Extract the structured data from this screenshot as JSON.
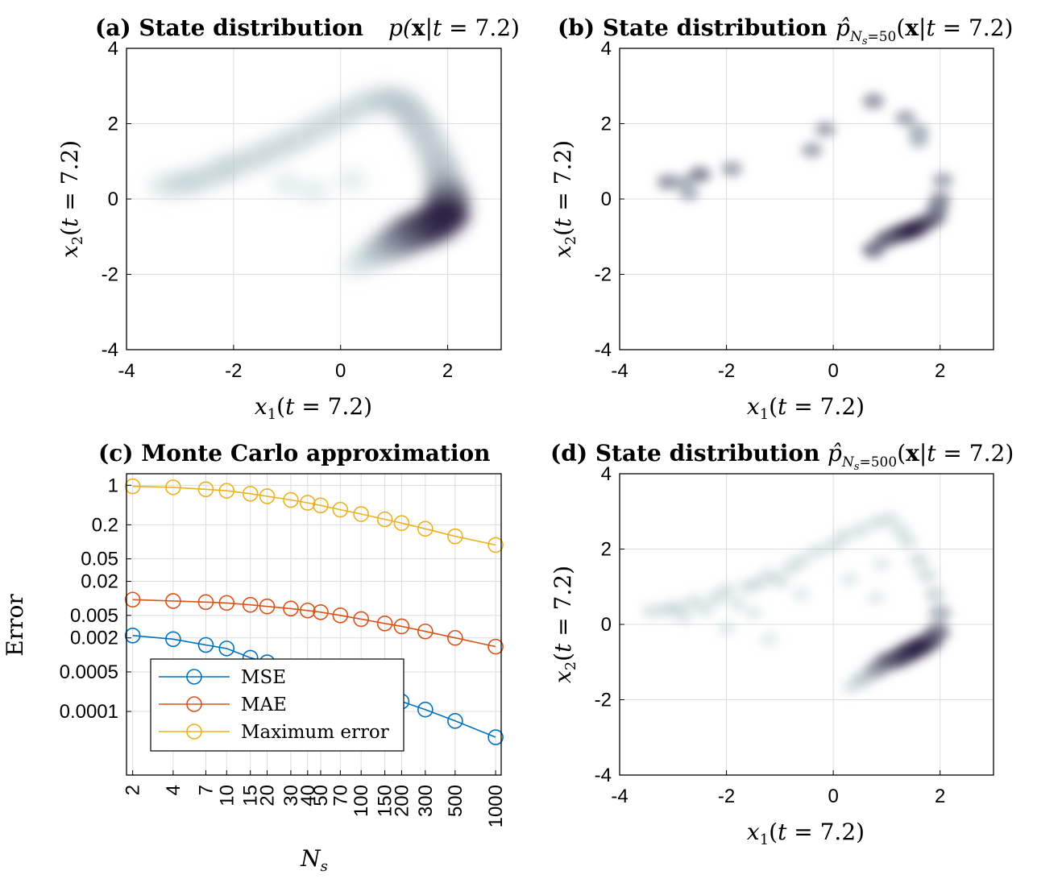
{
  "colors": {
    "density_light": "#c4dadb",
    "density_dark": "#2e2446",
    "mse": "#0072BD",
    "mae": "#D95319",
    "max_error": "#EDB120",
    "grid": "#dcdcdc"
  },
  "chart_data": [
    {
      "panel": "a",
      "type": "heatmap",
      "title_prefix": "(a) State distribution",
      "title_math": "p(x|t = 7.2)",
      "xlabel": "x1(t = 7.2)",
      "ylabel": "x2(t = 7.2)",
      "xlim": [
        -4,
        3
      ],
      "ylim": [
        -4,
        4
      ],
      "xticks": [
        -4,
        -2,
        0,
        2
      ],
      "yticks": [
        -4,
        -2,
        0,
        2,
        4
      ],
      "grid": true,
      "points": [
        [
          -3.3,
          0.35,
          0.2
        ],
        [
          -3.0,
          0.4,
          0.3
        ],
        [
          -2.7,
          0.5,
          0.35
        ],
        [
          -2.3,
          0.7,
          0.35
        ],
        [
          -2.0,
          0.9,
          0.35
        ],
        [
          -1.6,
          1.1,
          0.35
        ],
        [
          -1.2,
          1.35,
          0.35
        ],
        [
          -0.8,
          1.6,
          0.35
        ],
        [
          -0.4,
          1.9,
          0.35
        ],
        [
          0.0,
          2.2,
          0.35
        ],
        [
          0.4,
          2.5,
          0.35
        ],
        [
          0.8,
          2.65,
          0.4
        ],
        [
          1.1,
          2.6,
          0.4
        ],
        [
          1.3,
          2.3,
          0.45
        ],
        [
          1.5,
          1.9,
          0.45
        ],
        [
          1.7,
          1.4,
          0.45
        ],
        [
          1.85,
          0.9,
          0.5
        ],
        [
          1.95,
          0.4,
          0.6
        ],
        [
          2.0,
          0.0,
          0.8
        ],
        [
          1.95,
          -0.4,
          1.0
        ],
        [
          1.8,
          -0.6,
          1.0
        ],
        [
          1.6,
          -0.75,
          1.0
        ],
        [
          1.35,
          -0.9,
          0.95
        ],
        [
          1.1,
          -1.1,
          0.8
        ],
        [
          0.85,
          -1.3,
          0.6
        ],
        [
          0.6,
          -1.5,
          0.4
        ],
        [
          0.3,
          -1.75,
          0.2
        ],
        [
          -1.0,
          0.4,
          0.12
        ],
        [
          -0.5,
          0.2,
          0.12
        ],
        [
          0.2,
          0.5,
          0.12
        ]
      ]
    },
    {
      "panel": "b",
      "type": "heatmap",
      "title_prefix": "(b) State distribution",
      "title_math": "p̂_Ns=50(x|t = 7.2)",
      "xlabel": "x1(t = 7.2)",
      "ylabel": "x2(t = 7.2)",
      "xlim": [
        -4,
        3
      ],
      "ylim": [
        -4,
        4
      ],
      "xticks": [
        -4,
        -2,
        0,
        2
      ],
      "yticks": [
        -4,
        -2,
        0,
        2,
        4
      ],
      "grid": true,
      "points": [
        [
          -3.1,
          0.45,
          0.7
        ],
        [
          -2.8,
          0.45,
          0.6
        ],
        [
          -2.5,
          0.65,
          0.75
        ],
        [
          -2.7,
          0.15,
          0.6
        ],
        [
          -1.9,
          0.8,
          0.65
        ],
        [
          -0.4,
          1.3,
          0.65
        ],
        [
          -0.15,
          1.85,
          0.65
        ],
        [
          0.75,
          2.6,
          0.7
        ],
        [
          1.35,
          2.15,
          0.65
        ],
        [
          1.6,
          1.8,
          0.6
        ],
        [
          1.6,
          1.55,
          0.55
        ],
        [
          2.05,
          0.5,
          0.65
        ],
        [
          2.0,
          0.0,
          0.7
        ],
        [
          1.95,
          -0.25,
          0.75
        ],
        [
          1.9,
          -0.5,
          0.8
        ],
        [
          1.7,
          -0.65,
          0.9
        ],
        [
          1.5,
          -0.8,
          1.0
        ],
        [
          1.3,
          -0.9,
          1.0
        ],
        [
          1.1,
          -1.0,
          0.9
        ],
        [
          0.95,
          -1.1,
          0.8
        ],
        [
          0.75,
          -1.35,
          0.8
        ]
      ]
    },
    {
      "panel": "c",
      "type": "line",
      "log_y": true,
      "title": "(c) Monte Carlo approximation",
      "xlabel": "Ns",
      "ylabel": "Error",
      "grid": true,
      "legend_position": "bottom-left",
      "x": [
        2,
        4,
        7,
        10,
        15,
        20,
        30,
        40,
        50,
        70,
        100,
        150,
        200,
        300,
        500,
        1000
      ],
      "xtick_labels": [
        "2",
        "4",
        "7",
        "10",
        "15",
        "20",
        "30",
        "40",
        "50",
        "70",
        "100",
        "150",
        "200",
        "300",
        "500",
        "1000"
      ],
      "ytick_values": [
        0.0001,
        0.0005,
        0.002,
        0.005,
        0.02,
        0.05,
        0.2,
        1
      ],
      "ytick_labels": [
        "0.0001",
        "0.0005",
        "0.002",
        "0.005",
        "0.02",
        "0.05",
        "0.2",
        "1"
      ],
      "ylim": [
        7.5e-06,
        1.6
      ],
      "series": [
        {
          "name": "MSE",
          "values": [
            0.0022,
            0.0019,
            0.0015,
            0.0013,
            0.00089,
            0.00074,
            0.00059,
            0.00049,
            0.00042,
            0.00031,
            0.00024,
            0.00018,
            0.00015,
            0.000108,
            6.8e-05,
            3.5e-05
          ]
        },
        {
          "name": "MAE",
          "values": [
            0.0095,
            0.009,
            0.0086,
            0.0083,
            0.0077,
            0.0072,
            0.0066,
            0.0061,
            0.0057,
            0.005,
            0.0043,
            0.0036,
            0.0032,
            0.0026,
            0.002,
            0.0014
          ]
        },
        {
          "name": "Maximum error",
          "values": [
            0.96,
            0.92,
            0.85,
            0.8,
            0.71,
            0.64,
            0.55,
            0.49,
            0.44,
            0.37,
            0.31,
            0.25,
            0.215,
            0.17,
            0.125,
            0.088
          ]
        }
      ]
    },
    {
      "panel": "d",
      "type": "heatmap",
      "title_prefix": "(d) State distribution",
      "title_math": "p̂_Ns=500(x|t = 7.2)",
      "xlabel": "x1(t = 7.2)",
      "ylabel": "x2(t = 7.2)",
      "xlim": [
        -4,
        3
      ],
      "ylim": [
        -4,
        4
      ],
      "xticks": [
        -4,
        -2,
        0,
        2
      ],
      "yticks": [
        -4,
        -2,
        0,
        2,
        4
      ],
      "grid": true,
      "points": [
        [
          -3.4,
          0.35,
          0.3
        ],
        [
          -3.1,
          0.4,
          0.35
        ],
        [
          -2.9,
          0.45,
          0.3
        ],
        [
          -2.6,
          0.6,
          0.3
        ],
        [
          -2.4,
          0.4,
          0.25
        ],
        [
          -2.2,
          0.7,
          0.3
        ],
        [
          -2.0,
          0.9,
          0.3
        ],
        [
          -1.8,
          0.55,
          0.25
        ],
        [
          -1.6,
          1.0,
          0.3
        ],
        [
          -1.4,
          1.1,
          0.3
        ],
        [
          -1.2,
          1.3,
          0.3
        ],
        [
          -1.0,
          1.15,
          0.3
        ],
        [
          -0.8,
          1.5,
          0.3
        ],
        [
          -0.6,
          1.7,
          0.3
        ],
        [
          -0.3,
          1.95,
          0.3
        ],
        [
          0.0,
          2.1,
          0.3
        ],
        [
          0.2,
          2.35,
          0.3
        ],
        [
          0.5,
          2.5,
          0.3
        ],
        [
          0.8,
          2.7,
          0.3
        ],
        [
          1.05,
          2.8,
          0.3
        ],
        [
          1.25,
          2.5,
          0.3
        ],
        [
          1.4,
          2.2,
          0.3
        ],
        [
          1.6,
          1.7,
          0.35
        ],
        [
          1.75,
          1.3,
          0.35
        ],
        [
          1.9,
          0.8,
          0.4
        ],
        [
          2.0,
          0.3,
          0.6
        ],
        [
          1.95,
          -0.2,
          0.8
        ],
        [
          1.8,
          -0.45,
          0.9
        ],
        [
          1.6,
          -0.6,
          1.0
        ],
        [
          1.4,
          -0.75,
          1.0
        ],
        [
          1.2,
          -0.9,
          0.95
        ],
        [
          1.0,
          -1.0,
          0.85
        ],
        [
          0.8,
          -1.2,
          0.7
        ],
        [
          0.55,
          -1.45,
          0.5
        ],
        [
          0.35,
          -1.65,
          0.3
        ],
        [
          -1.2,
          -0.4,
          0.2
        ],
        [
          -2.0,
          -0.1,
          0.2
        ],
        [
          0.3,
          1.2,
          0.2
        ],
        [
          0.8,
          0.7,
          0.2
        ],
        [
          -0.6,
          0.8,
          0.2
        ],
        [
          -2.8,
          0.2,
          0.25
        ],
        [
          0.9,
          1.6,
          0.2
        ],
        [
          -1.5,
          0.3,
          0.2
        ]
      ]
    }
  ]
}
